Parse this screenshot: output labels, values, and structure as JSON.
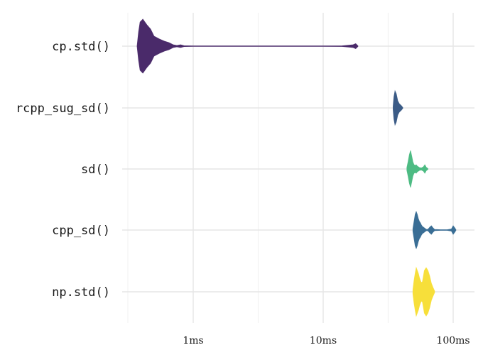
{
  "chart_data": {
    "type": "violin",
    "title": "",
    "xlabel": "",
    "ylabel": "",
    "x_scale": "log10",
    "x_unit": "ms",
    "xlim_ms": [
      0.3,
      200
    ],
    "x_ticks": [
      {
        "value": 1,
        "label": "1ms"
      },
      {
        "value": 10,
        "label": "10ms"
      },
      {
        "value": 100,
        "label": "100ms"
      }
    ],
    "grid": true,
    "legend": "none",
    "categories": [
      "cp.std()",
      "rcpp_sug_sd()",
      "sd()",
      "cpp_sd()",
      "np.std()"
    ],
    "series": [
      {
        "label": "cp.std()",
        "color": "#4a2a6a",
        "min_ms": 0.37,
        "max_ms": 18.5,
        "density": [
          [
            0.37,
            0.5
          ],
          [
            0.38,
            20
          ],
          [
            0.39,
            34
          ],
          [
            0.41,
            38
          ],
          [
            0.44,
            30
          ],
          [
            0.47,
            24
          ],
          [
            0.5,
            14
          ],
          [
            0.55,
            10
          ],
          [
            0.6,
            7
          ],
          [
            0.65,
            5
          ],
          [
            0.7,
            2
          ],
          [
            0.75,
            1
          ],
          [
            0.8,
            2
          ],
          [
            0.85,
            0.6
          ],
          [
            1.0,
            0.4
          ],
          [
            2.0,
            0.4
          ],
          [
            5.0,
            0.4
          ],
          [
            10.0,
            0.4
          ],
          [
            14.0,
            0.5
          ],
          [
            16.0,
            1.5
          ],
          [
            17.0,
            2
          ],
          [
            17.8,
            3.5
          ],
          [
            18.5,
            0.5
          ]
        ]
      },
      {
        "label": "rcpp_sug_sd()",
        "color": "#3b5b86",
        "min_ms": 34.5,
        "max_ms": 41,
        "density": [
          [
            34.5,
            2
          ],
          [
            35,
            16
          ],
          [
            35.7,
            24
          ],
          [
            36.5,
            20
          ],
          [
            37.5,
            10
          ],
          [
            38.5,
            6
          ],
          [
            40,
            3
          ],
          [
            41,
            0.5
          ]
        ]
      },
      {
        "label": "sd()",
        "color": "#4dbb83",
        "min_ms": 44,
        "max_ms": 64,
        "density": [
          [
            44,
            2
          ],
          [
            45,
            10
          ],
          [
            46,
            20
          ],
          [
            47,
            26
          ],
          [
            48,
            18
          ],
          [
            49,
            10
          ],
          [
            50,
            6
          ],
          [
            51,
            5
          ],
          [
            52,
            6
          ],
          [
            53,
            4
          ],
          [
            55,
            2
          ],
          [
            57,
            1.5
          ],
          [
            59,
            3
          ],
          [
            60.5,
            6
          ],
          [
            62,
            2.5
          ],
          [
            64,
            0.5
          ]
        ]
      },
      {
        "label": "cpp_sd()",
        "color": "#3a6e95",
        "min_ms": 49,
        "max_ms": 105,
        "density": [
          [
            49,
            2
          ],
          [
            50,
            12
          ],
          [
            51,
            22
          ],
          [
            52,
            26
          ],
          [
            53,
            22
          ],
          [
            54,
            16
          ],
          [
            55,
            12
          ],
          [
            56,
            10
          ],
          [
            57,
            7
          ],
          [
            58,
            5
          ],
          [
            60,
            3
          ],
          [
            62,
            1
          ],
          [
            64,
            1
          ],
          [
            66,
            4
          ],
          [
            68,
            6
          ],
          [
            70,
            3
          ],
          [
            72,
            0.8
          ],
          [
            80,
            0.5
          ],
          [
            90,
            0.5
          ],
          [
            97,
            1.5
          ],
          [
            100,
            6
          ],
          [
            103,
            3
          ],
          [
            105,
            0.5
          ]
        ]
      },
      {
        "label": "np.std()",
        "color": "#f7df3a",
        "min_ms": 49,
        "max_ms": 72,
        "density": [
          [
            49,
            3
          ],
          [
            50,
            16
          ],
          [
            51,
            26
          ],
          [
            52,
            34
          ],
          [
            53,
            30
          ],
          [
            54,
            26
          ],
          [
            55,
            20
          ],
          [
            56,
            16
          ],
          [
            57,
            13
          ],
          [
            58,
            14
          ],
          [
            59,
            22
          ],
          [
            60,
            30
          ],
          [
            62,
            34
          ],
          [
            64,
            30
          ],
          [
            66,
            22
          ],
          [
            68,
            12
          ],
          [
            70,
            6
          ],
          [
            72,
            1
          ]
        ]
      }
    ]
  }
}
